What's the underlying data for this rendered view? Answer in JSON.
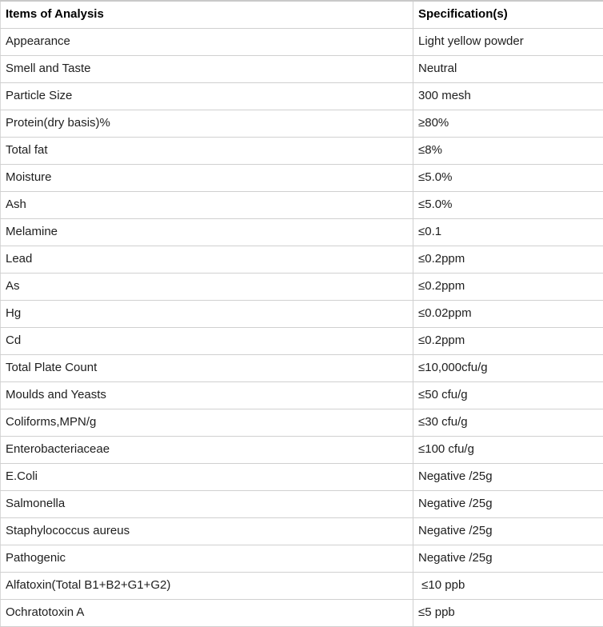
{
  "table": {
    "columns": [
      {
        "label": "Items of Analysis"
      },
      {
        "label": "Specification(s)"
      }
    ],
    "rows": [
      {
        "item": "Appearance",
        "spec": "Light yellow powder"
      },
      {
        "item": "Smell and Taste",
        "spec": "Neutral"
      },
      {
        "item": "Particle Size",
        "spec": "300 mesh"
      },
      {
        "item": "Protein(dry basis)%",
        "spec": "≥80%"
      },
      {
        "item": "Total fat",
        "spec": "≤8%"
      },
      {
        "item": "Moisture",
        "spec": "≤5.0%"
      },
      {
        "item": "Ash",
        "spec": "≤5.0%"
      },
      {
        "item": "Melamine",
        "spec": "≤0.1"
      },
      {
        "item": "Lead",
        "spec": "≤0.2ppm"
      },
      {
        "item": "As",
        "spec": "≤0.2ppm"
      },
      {
        "item": "Hg",
        "spec": "≤0.02ppm"
      },
      {
        "item": "Cd",
        "spec": "≤0.2ppm"
      },
      {
        "item": "Total Plate Count",
        "spec": "≤10,000cfu/g"
      },
      {
        "item": "Moulds and Yeasts",
        "spec": "≤50 cfu/g"
      },
      {
        "item": "Coliforms,MPN/g",
        "spec": "≤30 cfu/g"
      },
      {
        "item": "Enterobacteriaceae",
        "spec": "≤100 cfu/g"
      },
      {
        "item": "E.Coli",
        "spec": "Negative /25g"
      },
      {
        "item": "Salmonella",
        "spec": "Negative /25g"
      },
      {
        "item": "Staphylococcus aureus",
        "spec": "Negative /25g"
      },
      {
        "item": "Pathogenic",
        "spec": "Negative /25g"
      },
      {
        "item": "Alfatoxin(Total B1+B2+G1+G2)",
        "spec": " ≤10 ppb"
      },
      {
        "item": "Ochratotoxin A",
        "spec": "≤5 ppb"
      }
    ]
  }
}
